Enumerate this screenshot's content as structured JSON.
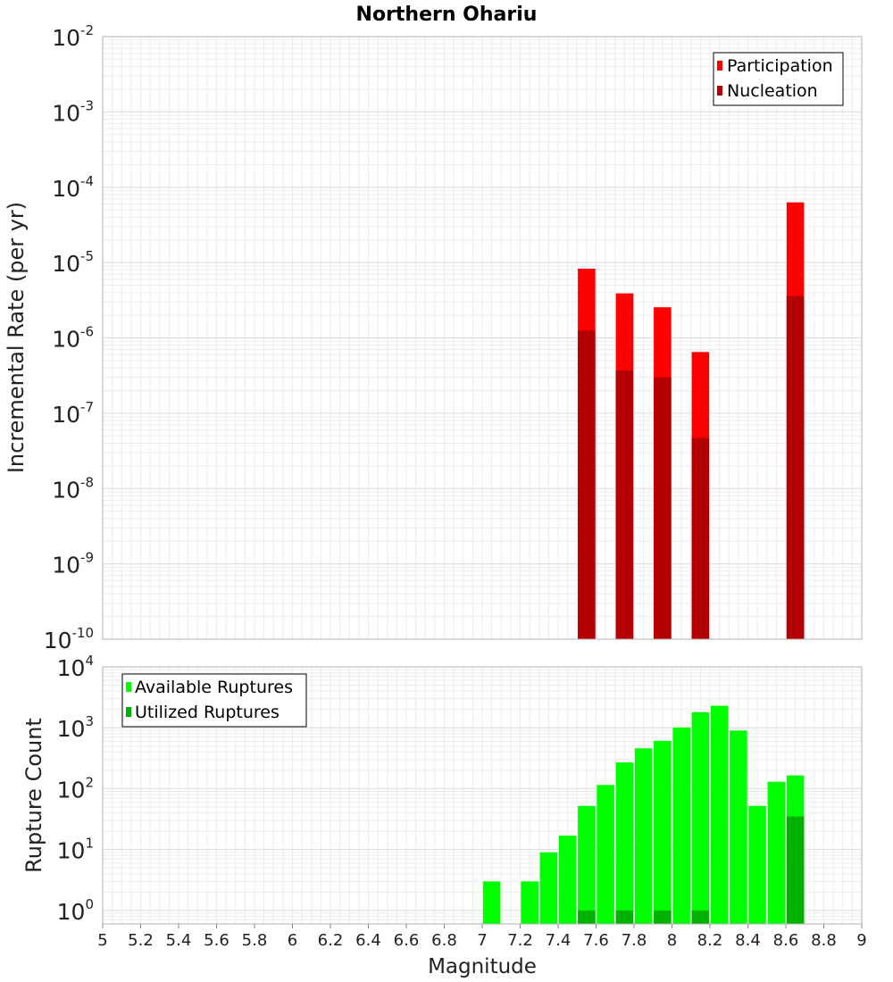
{
  "chart_data": [
    {
      "type": "bar",
      "title": "Northern Ohariu",
      "ylabel": "Incremental Rate (per yr)",
      "xlabel": "",
      "y_scale": "log",
      "ylim": [
        1e-10,
        0.01
      ],
      "xlim": [
        5,
        9
      ],
      "grid": true,
      "legend_position": "top-right",
      "y_ticks": [
        {
          "base": "10",
          "exp": "-10"
        },
        {
          "base": "10",
          "exp": "-9"
        },
        {
          "base": "10",
          "exp": "-8"
        },
        {
          "base": "10",
          "exp": "-7"
        },
        {
          "base": "10",
          "exp": "-6"
        },
        {
          "base": "10",
          "exp": "-5"
        },
        {
          "base": "10",
          "exp": "-4"
        },
        {
          "base": "10",
          "exp": "-3"
        },
        {
          "base": "10",
          "exp": "-2"
        }
      ],
      "series": [
        {
          "name": "Participation",
          "color": "#ff0000",
          "x": [
            7.55,
            7.75,
            7.95,
            8.15,
            8.65
          ],
          "values": [
            8.3e-06,
            3.9e-06,
            2.55e-06,
            6.5e-07,
            6.3e-05
          ]
        },
        {
          "name": "Nucleation",
          "color": "#b30000",
          "x": [
            7.55,
            7.75,
            7.95,
            8.15,
            8.65
          ],
          "values": [
            1.25e-06,
            3.7e-07,
            3e-07,
            4.7e-08,
            3.6e-06
          ]
        }
      ]
    },
    {
      "type": "bar",
      "title": "",
      "ylabel": "Rupture Count",
      "xlabel": "Magnitude",
      "y_scale": "log",
      "ylim": [
        0.6,
        10000
      ],
      "xlim": [
        5,
        9
      ],
      "grid": true,
      "legend_position": "top-left",
      "y_ticks": [
        {
          "base": "10",
          "exp": "0"
        },
        {
          "base": "10",
          "exp": "1"
        },
        {
          "base": "10",
          "exp": "2"
        },
        {
          "base": "10",
          "exp": "3"
        },
        {
          "base": "10",
          "exp": "4"
        }
      ],
      "x_ticks": [
        "5",
        "5.2",
        "5.4",
        "5.6",
        "5.8",
        "6",
        "6.2",
        "6.4",
        "6.6",
        "6.8",
        "7",
        "7.2",
        "7.4",
        "7.6",
        "7.8",
        "8",
        "8.2",
        "8.4",
        "8.6",
        "8.8",
        "9"
      ],
      "series": [
        {
          "name": "Available Ruptures",
          "color": "#00ff00",
          "x": [
            7.05,
            7.25,
            7.35,
            7.45,
            7.55,
            7.65,
            7.75,
            7.85,
            7.95,
            8.05,
            8.15,
            8.25,
            8.35,
            8.45,
            8.55,
            8.65
          ],
          "values": [
            3,
            3,
            9,
            17,
            52,
            115,
            270,
            460,
            610,
            1010,
            1800,
            2300,
            900,
            52,
            130,
            165
          ]
        },
        {
          "name": "Utilized Ruptures",
          "color": "#00b200",
          "x": [
            7.55,
            7.75,
            7.95,
            8.15,
            8.65
          ],
          "values": [
            1,
            1,
            1,
            1,
            35
          ]
        }
      ]
    }
  ]
}
